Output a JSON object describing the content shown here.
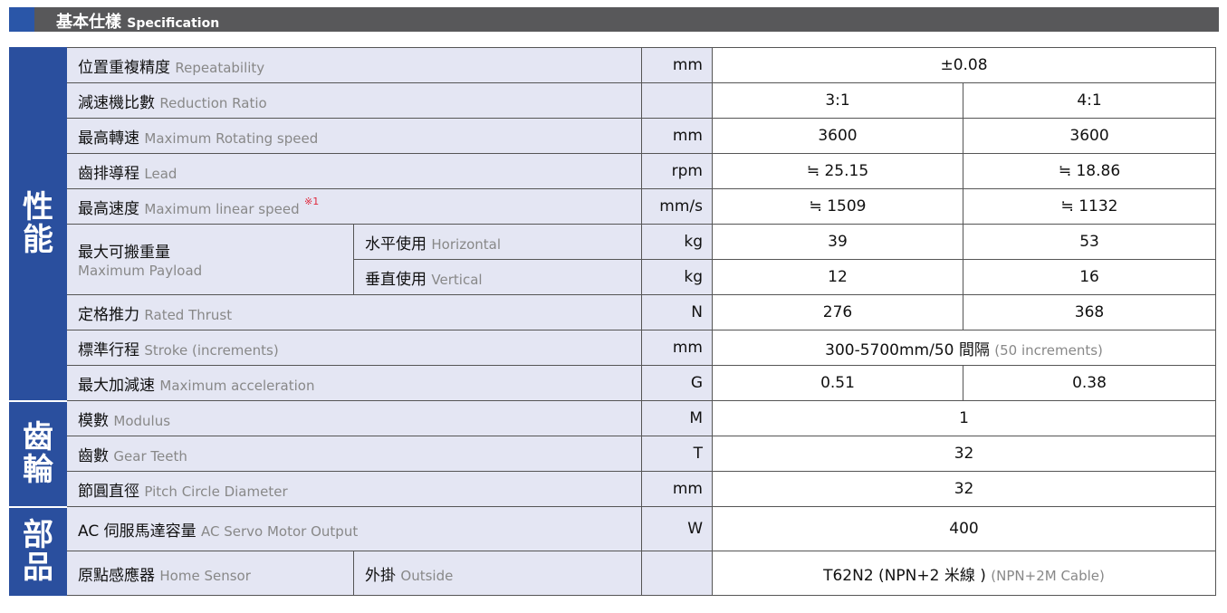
{
  "header": {
    "title_zh": "基本仕樣",
    "title_en": "Specification"
  },
  "sections": {
    "performance": "性能",
    "gear": "齒輪",
    "parts": "部品"
  },
  "rows": [
    {
      "zh": "位置重複精度",
      "en": "Repeatability",
      "unit": "mm",
      "v1": "±0.08"
    },
    {
      "zh": "減速機比數",
      "en": "Reduction Ratio",
      "unit": "",
      "v1": "3:1",
      "v2": "4:1"
    },
    {
      "zh": "最高轉速",
      "en": "Maximum Rotating speed",
      "unit": "mm",
      "v1": "3600",
      "v2": "3600"
    },
    {
      "zh": "齒排導程",
      "en": "Lead",
      "unit": "rpm",
      "v1": "≒ 25.15",
      "v2": "≒ 18.86"
    },
    {
      "zh": "最高速度",
      "en": "Maximum linear speed",
      "note": "※1",
      "unit": "mm/s",
      "v1": "≒ 1509",
      "v2": "≒ 1132"
    },
    {
      "zh": "最大可搬重量",
      "en": "Maximum Payload",
      "sub_zh": "水平使用",
      "sub_en": "Horizontal",
      "unit": "kg",
      "v1": "39",
      "v2": "53"
    },
    {
      "sub_zh": "垂直使用",
      "sub_en": "Vertical",
      "unit": "kg",
      "v1": "12",
      "v2": "16"
    },
    {
      "zh": "定格推力",
      "en": "Rated Thrust",
      "unit": "N",
      "v1": "276",
      "v2": "368"
    },
    {
      "zh": "標準行程",
      "en": "Stroke (increments)",
      "unit": "mm",
      "v1": "300-5700mm/50 間隔",
      "v1_en": "(50 increments)"
    },
    {
      "zh": "最大加減速",
      "en": "Maximum acceleration",
      "unit": "G",
      "v1": "0.51",
      "v2": "0.38"
    },
    {
      "zh": "模數",
      "en": "Modulus",
      "unit": "M",
      "v1": "1"
    },
    {
      "zh": "齒數",
      "en": "Gear Teeth",
      "unit": "T",
      "v1": "32"
    },
    {
      "zh": "節圓直徑",
      "en": "Pitch Circle Diameter",
      "unit": "mm",
      "v1": "32"
    },
    {
      "zh": "AC 伺服馬達容量",
      "en": "AC Servo Motor Output",
      "unit": "W",
      "v1": "400"
    },
    {
      "zh": "原點感應器",
      "en": "Home Sensor",
      "sub_zh": "外掛",
      "sub_en": "Outside",
      "unit": "",
      "v1": "T62N2 (NPN+2 米線 )",
      "v1_en": "(NPN+2M Cable)"
    }
  ]
}
